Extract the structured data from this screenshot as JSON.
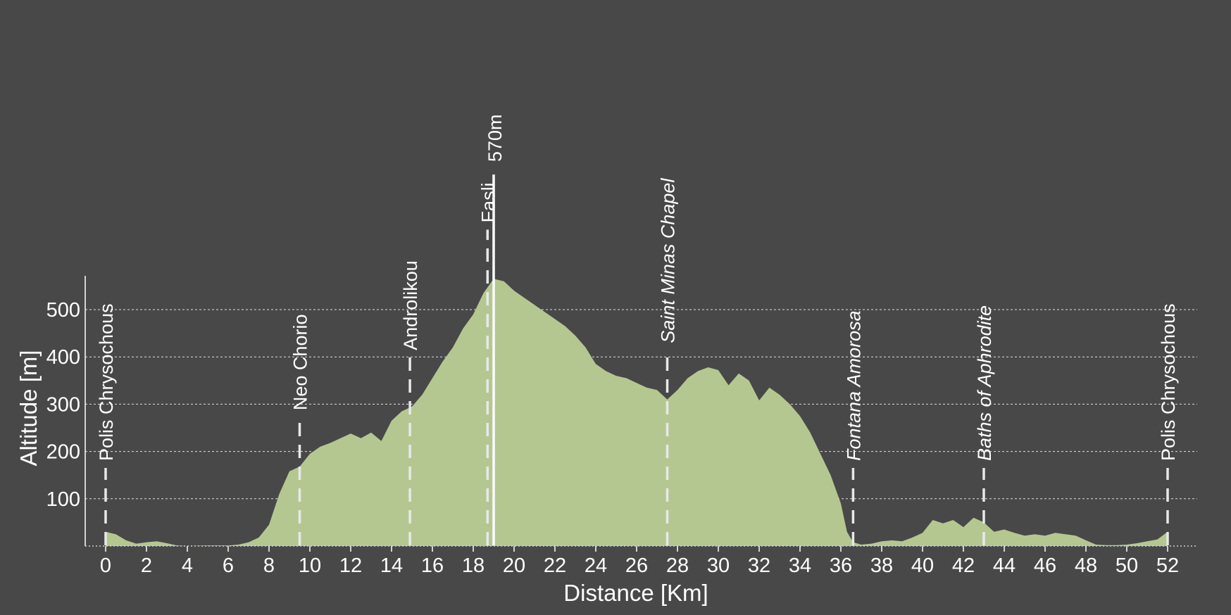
{
  "chart_data": {
    "type": "area",
    "xlabel": "Distance [Km]",
    "ylabel": "Altitude [m]",
    "xlim": [
      -1,
      53.5
    ],
    "ylim": [
      0,
      570
    ],
    "x_ticks": [
      0,
      2,
      4,
      6,
      8,
      10,
      12,
      14,
      16,
      18,
      20,
      22,
      24,
      26,
      28,
      30,
      32,
      34,
      36,
      38,
      40,
      42,
      44,
      46,
      48,
      50,
      52
    ],
    "y_ticks": [
      100,
      200,
      300,
      400,
      500
    ],
    "grid": "horizontal-dotted",
    "fill_color": "#b5c791",
    "background_color": "#484848",
    "text_color": "#ffffff",
    "series": [
      {
        "x": [
          0,
          0.5,
          1,
          1.5,
          2,
          2.5,
          3,
          3.5,
          4,
          5,
          6,
          6.5,
          7,
          7.5,
          8,
          8.5,
          9,
          9.5,
          10,
          10.5,
          11,
          11.5,
          12,
          12.5,
          13,
          13.5,
          14,
          14.5,
          15,
          15.5,
          16,
          16.5,
          17,
          17.5,
          18,
          18.5,
          19,
          19.5,
          20,
          20.5,
          21,
          21.5,
          22,
          22.5,
          23,
          23.5,
          24,
          24.5,
          25,
          25.5,
          26,
          26.5,
          27,
          27.5,
          28,
          28.5,
          29,
          29.5,
          30,
          30.5,
          31,
          31.5,
          32,
          32.5,
          33,
          33.5,
          34,
          34.5,
          35,
          35.5,
          36,
          36.3,
          36.6,
          37,
          37.5,
          38,
          38.5,
          39,
          39.5,
          40,
          40.5,
          41,
          41.5,
          42,
          42.5,
          43,
          43.5,
          44,
          44.5,
          45,
          45.5,
          46,
          46.5,
          47,
          47.5,
          48,
          48.5,
          49,
          49.5,
          50,
          50.5,
          51,
          51.5,
          52
        ],
        "y": [
          30,
          25,
          12,
          5,
          8,
          10,
          6,
          1,
          0,
          1,
          1,
          3,
          8,
          18,
          45,
          110,
          158,
          168,
          195,
          210,
          218,
          228,
          238,
          228,
          240,
          222,
          265,
          285,
          295,
          320,
          355,
          390,
          420,
          460,
          490,
          535,
          565,
          560,
          540,
          525,
          510,
          495,
          480,
          465,
          445,
          420,
          385,
          370,
          360,
          355,
          345,
          335,
          330,
          310,
          330,
          355,
          370,
          378,
          372,
          340,
          365,
          350,
          308,
          335,
          320,
          300,
          275,
          240,
          195,
          150,
          90,
          30,
          8,
          3,
          5,
          10,
          12,
          10,
          18,
          28,
          55,
          48,
          55,
          40,
          60,
          50,
          30,
          35,
          28,
          22,
          25,
          22,
          28,
          25,
          22,
          12,
          3,
          2,
          2,
          3,
          6,
          10,
          14,
          30
        ]
      }
    ],
    "peak": {
      "x": 19,
      "label": "570m"
    },
    "waypoints": [
      {
        "x": 0,
        "label": "Polis Chrysochous",
        "italic": false
      },
      {
        "x": 9.5,
        "label": "Neo Chorio",
        "italic": false
      },
      {
        "x": 14.9,
        "label": "Androlikou",
        "italic": false
      },
      {
        "x": 18.7,
        "label": "Fasli",
        "italic": false
      },
      {
        "x": 27.5,
        "label": "Saint Minas Chapel",
        "italic": true
      },
      {
        "x": 36.6,
        "label": "Fontana Amorosa",
        "italic": true
      },
      {
        "x": 43,
        "label": "Baths of Aphrodite",
        "italic": true
      },
      {
        "x": 52,
        "label": "Polis Chrysochous",
        "italic": false
      }
    ]
  }
}
